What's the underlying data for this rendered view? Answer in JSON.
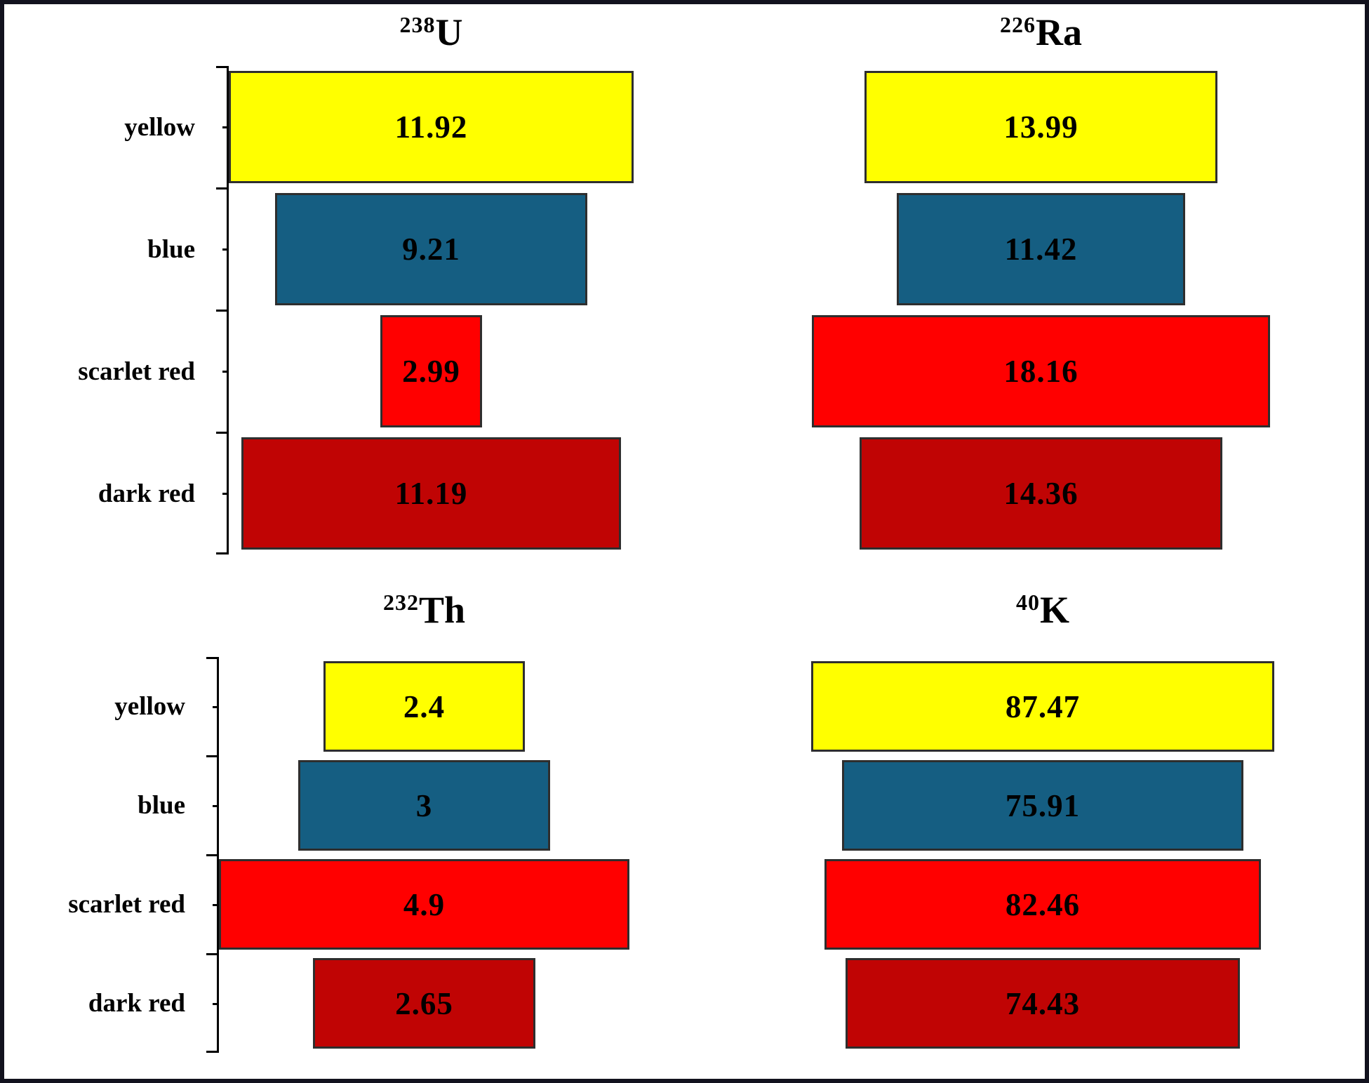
{
  "colors": {
    "yellow": "#FFFF00",
    "blue": "#155E82",
    "scarlet_red": "#FF0000",
    "dark_red": "#C00404",
    "bar_border": "#2E2E2E",
    "frame_border": "#12121E",
    "axis": "#000000"
  },
  "categories": [
    "yellow",
    "blue",
    "scarlet red",
    "dark red"
  ],
  "panels": [
    {
      "id": "u238",
      "title": {
        "superscript": "238",
        "element": "U"
      },
      "bars": [
        {
          "category": "yellow",
          "value": "11.92",
          "color": "yellow"
        },
        {
          "category": "blue",
          "value": "9.21",
          "color": "blue"
        },
        {
          "category": "scarlet red",
          "value": "2.99",
          "color": "scarlet_red"
        },
        {
          "category": "dark red",
          "value": "11.19",
          "color": "dark_red"
        }
      ]
    },
    {
      "id": "ra226",
      "title": {
        "superscript": "226",
        "element": "Ra"
      },
      "bars": [
        {
          "category": "yellow",
          "value": "13.99",
          "color": "yellow"
        },
        {
          "category": "blue",
          "value": "11.42",
          "color": "blue"
        },
        {
          "category": "scarlet red",
          "value": "18.16",
          "color": "scarlet_red"
        },
        {
          "category": "dark red",
          "value": "14.36",
          "color": "dark_red"
        }
      ]
    },
    {
      "id": "th232",
      "title": {
        "superscript": "232",
        "element": "Th"
      },
      "bars": [
        {
          "category": "yellow",
          "value": "2.4",
          "color": "yellow"
        },
        {
          "category": "blue",
          "value": "3",
          "color": "blue"
        },
        {
          "category": "scarlet red",
          "value": "4.9",
          "color": "scarlet_red"
        },
        {
          "category": "dark red",
          "value": "2.65",
          "color": "dark_red"
        }
      ]
    },
    {
      "id": "k40",
      "title": {
        "superscript": "40",
        "element": "K"
      },
      "bars": [
        {
          "category": "yellow",
          "value": "87.47",
          "color": "yellow"
        },
        {
          "category": "blue",
          "value": "75.91",
          "color": "blue"
        },
        {
          "category": "scarlet red",
          "value": "82.46",
          "color": "scarlet_red"
        },
        {
          "category": "dark red",
          "value": "74.43",
          "color": "dark_red"
        }
      ]
    }
  ],
  "chart_data": [
    {
      "type": "bar",
      "orientation": "horizontal-centered",
      "title": "238U",
      "categories": [
        "yellow",
        "blue",
        "scarlet red",
        "dark red"
      ],
      "values": [
        11.92,
        9.21,
        2.99,
        11.19
      ],
      "value_labels": "inside bars",
      "axis": "left vertical axis with major ticks at category boundaries and minor ticks at category centers",
      "legend": "none"
    },
    {
      "type": "bar",
      "orientation": "horizontal-centered",
      "title": "226Ra",
      "categories": [
        "yellow",
        "blue",
        "scarlet red",
        "dark red"
      ],
      "values": [
        13.99,
        11.42,
        18.16,
        14.36
      ],
      "value_labels": "inside bars",
      "axis": "none",
      "legend": "none"
    },
    {
      "type": "bar",
      "orientation": "horizontal-centered",
      "title": "232Th",
      "categories": [
        "yellow",
        "blue",
        "scarlet red",
        "dark red"
      ],
      "values": [
        2.4,
        3,
        4.9,
        2.65
      ],
      "value_labels": "inside bars",
      "axis": "left vertical axis with major ticks at category boundaries and minor ticks at category centers",
      "legend": "none"
    },
    {
      "type": "bar",
      "orientation": "horizontal-centered",
      "title": "40K",
      "categories": [
        "yellow",
        "blue",
        "scarlet red",
        "dark red"
      ],
      "values": [
        87.47,
        75.91,
        82.46,
        74.43
      ],
      "value_labels": "inside bars",
      "axis": "none",
      "legend": "none"
    }
  ]
}
